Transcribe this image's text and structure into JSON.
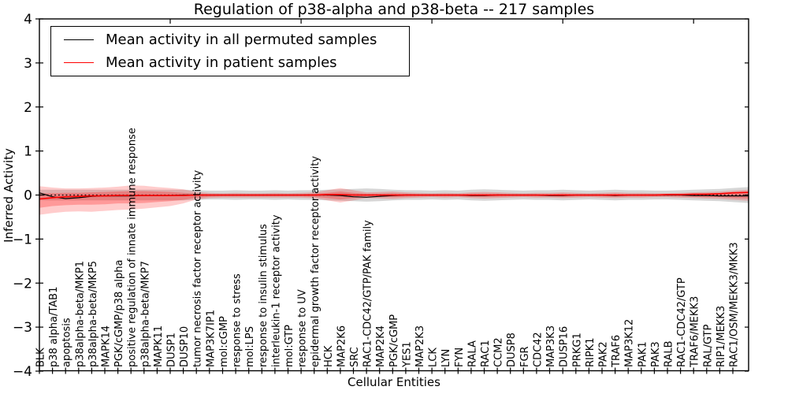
{
  "chart_data": {
    "type": "line",
    "title": "Regulation of p38-alpha and p38-beta -- 217 samples",
    "xlabel": "Cellular Entities",
    "ylabel": "Inferred Activity",
    "ylim": [
      -4,
      4
    ],
    "grid": false,
    "legend_position": "upper left",
    "yticks": [
      {
        "value": -4,
        "label": "−4"
      },
      {
        "value": -3,
        "label": "−3"
      },
      {
        "value": -2,
        "label": "−2"
      },
      {
        "value": -1,
        "label": "−1"
      },
      {
        "value": 0,
        "label": "0"
      },
      {
        "value": 1,
        "label": "1"
      },
      {
        "value": 2,
        "label": "2"
      },
      {
        "value": 3,
        "label": "3"
      },
      {
        "value": 4,
        "label": "4"
      }
    ],
    "x_major_ticks": [
      10,
      20,
      30,
      40,
      50
    ],
    "categories": [
      "BLK",
      "p38 alpha/TAB1",
      "apoptosis",
      "p38alpha-beta/MKP1",
      "p38alpha-beta/MKP5",
      "MAPK14",
      "PGK/cGMP/p38 alpha",
      "positive regulation of innate immune response",
      "p38alpha-beta/MKP7",
      "MAPK11",
      "DUSP1",
      "DUSP10",
      "tumor necrosis factor receptor activity",
      "MAP3K7IP1",
      "mol:cGMP",
      "response to stress",
      "mol:LPS",
      "response to insulin stimulus",
      "interleukin-1 receptor activity",
      "mol:GTP",
      "response to UV",
      "epidermal growth factor receptor activity",
      "HCK",
      "MAP2K6",
      "SRC",
      "RAC1-CDC42/GTP/PAK family",
      "MAP2K4",
      "PGK/cGMP",
      "YES1",
      "MAP2K3",
      "LCK",
      "LYN",
      "FYN",
      "RALA",
      "RAC1",
      "CCM2",
      "DUSP8",
      "FGR",
      "CDC42",
      "MAP3K3",
      "DUSP16",
      "PRKG1",
      "RIPK1",
      "PAK2",
      "TRAF6",
      "MAP3K12",
      "PAK1",
      "PAK3",
      "RALB",
      "RAC1-CDC42/GTP",
      "TRAF6/MEKK3",
      "RAL/GTP",
      "RIP1/MEKK3",
      "RAC1/OSM/MEKK3/MKK3"
    ],
    "series": [
      {
        "name": "Mean activity in all permuted samples",
        "color": "#000000",
        "edge_value": -0.02,
        "values": [
          0.05,
          -0.04,
          -0.08,
          -0.06,
          -0.03,
          -0.02,
          -0.02,
          -0.02,
          -0.01,
          -0.01,
          -0.01,
          0.0,
          0.0,
          0.0,
          0.0,
          0.0,
          0.0,
          0.0,
          0.0,
          0.0,
          0.0,
          0.0,
          0.0,
          -0.01,
          -0.04,
          -0.05,
          -0.03,
          -0.01,
          0.0,
          0.0,
          0.0,
          0.0,
          0.0,
          -0.01,
          -0.01,
          0.0,
          0.0,
          0.0,
          0.0,
          -0.01,
          -0.01,
          0.0,
          0.0,
          0.0,
          -0.01,
          0.0,
          0.0,
          0.0,
          0.0,
          0.0,
          -0.01,
          -0.01,
          -0.02,
          -0.02
        ]
      },
      {
        "name": "Mean activity in patient samples",
        "color": "#ff0000",
        "edge_value": 0.06,
        "values": [
          -0.09,
          -0.06,
          -0.04,
          -0.03,
          -0.02,
          -0.02,
          -0.01,
          -0.01,
          -0.01,
          -0.01,
          -0.01,
          -0.01,
          0.0,
          0.0,
          0.0,
          0.0,
          0.0,
          0.0,
          0.0,
          0.0,
          0.0,
          0.0,
          0.01,
          0.01,
          0.0,
          0.0,
          0.0,
          0.0,
          0.0,
          0.0,
          0.0,
          0.0,
          0.0,
          0.0,
          0.0,
          0.0,
          0.0,
          0.0,
          0.0,
          0.0,
          0.0,
          0.0,
          0.0,
          0.0,
          0.0,
          0.0,
          0.0,
          0.0,
          0.01,
          0.01,
          0.02,
          0.02,
          0.03,
          0.05
        ]
      }
    ],
    "bands": [
      {
        "name": "permuted-std",
        "color": "#999999",
        "opacity": 0.4,
        "edge_top": 0.18,
        "edge_bottom": -0.18,
        "top": [
          0.12,
          0.12,
          0.12,
          0.12,
          0.12,
          0.12,
          0.12,
          0.12,
          0.12,
          0.12,
          0.12,
          0.12,
          0.11,
          0.1,
          0.1,
          0.11,
          0.1,
          0.1,
          0.11,
          0.1,
          0.11,
          0.11,
          0.12,
          0.13,
          0.14,
          0.15,
          0.14,
          0.12,
          0.11,
          0.11,
          0.1,
          0.11,
          0.1,
          0.12,
          0.13,
          0.12,
          0.11,
          0.1,
          0.11,
          0.11,
          0.12,
          0.11,
          0.1,
          0.11,
          0.12,
          0.11,
          0.11,
          0.1,
          0.1,
          0.11,
          0.12,
          0.13,
          0.14,
          0.16
        ],
        "bottom": [
          -0.12,
          -0.12,
          -0.12,
          -0.12,
          -0.12,
          -0.12,
          -0.12,
          -0.12,
          -0.12,
          -0.12,
          -0.12,
          -0.12,
          -0.11,
          -0.1,
          -0.1,
          -0.11,
          -0.1,
          -0.1,
          -0.11,
          -0.1,
          -0.11,
          -0.11,
          -0.12,
          -0.13,
          -0.14,
          -0.15,
          -0.14,
          -0.12,
          -0.11,
          -0.11,
          -0.1,
          -0.11,
          -0.1,
          -0.12,
          -0.13,
          -0.12,
          -0.11,
          -0.1,
          -0.11,
          -0.11,
          -0.12,
          -0.11,
          -0.1,
          -0.11,
          -0.12,
          -0.11,
          -0.11,
          -0.1,
          -0.1,
          -0.11,
          -0.12,
          -0.13,
          -0.14,
          -0.16
        ]
      },
      {
        "name": "patient-outer",
        "color": "#ff0000",
        "opacity": 0.2,
        "edge_top": 0.12,
        "edge_bottom": -0.13,
        "top": [
          0.2,
          0.17,
          0.15,
          0.15,
          0.16,
          0.17,
          0.19,
          0.22,
          0.21,
          0.18,
          0.16,
          0.13,
          0.07,
          0.05,
          0.04,
          0.05,
          0.04,
          0.04,
          0.05,
          0.04,
          0.05,
          0.06,
          0.11,
          0.16,
          0.11,
          0.06,
          0.07,
          0.08,
          0.06,
          0.05,
          0.04,
          0.05,
          0.04,
          0.06,
          0.07,
          0.06,
          0.05,
          0.04,
          0.05,
          0.05,
          0.06,
          0.05,
          0.04,
          0.05,
          0.06,
          0.05,
          0.05,
          0.04,
          0.04,
          0.05,
          0.06,
          0.07,
          0.08,
          0.1
        ],
        "bottom": [
          -0.45,
          -0.41,
          -0.38,
          -0.37,
          -0.38,
          -0.36,
          -0.34,
          -0.33,
          -0.31,
          -0.28,
          -0.25,
          -0.19,
          -0.1,
          -0.07,
          -0.06,
          -0.06,
          -0.06,
          -0.06,
          -0.06,
          -0.06,
          -0.06,
          -0.07,
          -0.12,
          -0.17,
          -0.12,
          -0.07,
          -0.08,
          -0.09,
          -0.07,
          -0.06,
          -0.05,
          -0.06,
          -0.05,
          -0.07,
          -0.08,
          -0.07,
          -0.06,
          -0.05,
          -0.06,
          -0.06,
          -0.07,
          -0.06,
          -0.05,
          -0.06,
          -0.07,
          -0.06,
          -0.06,
          -0.05,
          -0.05,
          -0.06,
          -0.07,
          -0.08,
          -0.09,
          -0.11
        ]
      },
      {
        "name": "patient-inner",
        "color": "#ff0000",
        "opacity": 0.25,
        "edge_top": 0.07,
        "edge_bottom": -0.08,
        "top": [
          0.04,
          0.04,
          0.05,
          0.05,
          0.06,
          0.07,
          0.08,
          0.09,
          0.09,
          0.08,
          0.07,
          0.05,
          0.03,
          0.02,
          0.02,
          0.02,
          0.02,
          0.02,
          0.02,
          0.02,
          0.02,
          0.03,
          0.05,
          0.08,
          0.05,
          0.03,
          0.03,
          0.04,
          0.03,
          0.02,
          0.02,
          0.02,
          0.02,
          0.03,
          0.03,
          0.03,
          0.02,
          0.02,
          0.02,
          0.02,
          0.03,
          0.02,
          0.02,
          0.02,
          0.03,
          0.02,
          0.02,
          0.02,
          0.02,
          0.02,
          0.03,
          0.04,
          0.04,
          0.06
        ],
        "bottom": [
          -0.29,
          -0.25,
          -0.23,
          -0.22,
          -0.22,
          -0.21,
          -0.19,
          -0.19,
          -0.18,
          -0.16,
          -0.14,
          -0.11,
          -0.06,
          -0.04,
          -0.03,
          -0.03,
          -0.03,
          -0.03,
          -0.03,
          -0.03,
          -0.03,
          -0.04,
          -0.07,
          -0.1,
          -0.07,
          -0.04,
          -0.04,
          -0.05,
          -0.04,
          -0.03,
          -0.03,
          -0.03,
          -0.03,
          -0.04,
          -0.04,
          -0.04,
          -0.03,
          -0.03,
          -0.03,
          -0.03,
          -0.04,
          -0.03,
          -0.03,
          -0.03,
          -0.04,
          -0.03,
          -0.03,
          -0.03,
          -0.03,
          -0.03,
          -0.04,
          -0.05,
          -0.05,
          -0.07
        ]
      }
    ],
    "zero_line": {
      "style": "dotted",
      "color": "#000000",
      "y": 0
    }
  }
}
